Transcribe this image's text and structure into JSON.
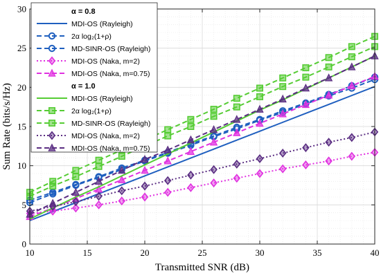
{
  "chart_data": {
    "type": "line",
    "title": "",
    "xlabel": "Transmitted SNR (dB)",
    "ylabel": "Sum Rate (bits/s/Hz)",
    "xlim": [
      10,
      40
    ],
    "ylim": [
      0,
      30
    ],
    "xticks": [
      10,
      15,
      20,
      25,
      30,
      35,
      40
    ],
    "yticks": [
      0,
      5,
      10,
      15,
      20,
      25,
      30
    ],
    "grid": true,
    "legend_position": "top-left",
    "legend_groups": [
      {
        "heading": "α = 0.8",
        "series_indices": [
          0,
          1,
          2,
          3,
          4
        ]
      },
      {
        "heading": "α = 1.0",
        "series_indices": [
          5,
          6,
          7,
          8,
          9
        ]
      }
    ],
    "x": [
      10,
      12,
      14,
      16,
      18,
      20,
      22,
      24,
      26,
      28,
      30,
      32,
      34,
      36,
      38,
      40
    ],
    "series": [
      {
        "name": "MDI-OS (Rayleigh)",
        "legend_label": "MDI-OS (Rayleigh)",
        "color": "#1f5fbf",
        "dash": "",
        "marker": "none",
        "values": [
          3.0,
          4.14,
          5.28,
          6.42,
          7.56,
          8.7,
          9.84,
          10.98,
          12.12,
          13.26,
          14.4,
          15.54,
          16.68,
          17.82,
          18.96,
          20.1
        ]
      },
      {
        "name": "2α log2(1+ρ)",
        "legend_label": "2α log₂(1+ρ)",
        "color": "#1f5fbf",
        "dash": "7,4",
        "marker": "circle",
        "values": [
          5.3,
          6.4,
          7.5,
          8.5,
          9.5,
          10.6,
          11.6,
          12.6,
          13.7,
          14.7,
          15.8,
          16.8,
          17.9,
          18.9,
          19.9,
          21.0
        ]
      },
      {
        "name": "MD-SINR-OS (Rayleigh)",
        "legend_label": "MD-SINR-OS (Rayleigh)",
        "color": "#1f5fbf",
        "dash": "7,4",
        "marker": "circle",
        "values": [
          5.6,
          6.6,
          7.6,
          8.6,
          9.7,
          10.7,
          11.7,
          12.8,
          13.8,
          14.9,
          15.9,
          17.0,
          18.0,
          19.1,
          20.2,
          21.3
        ]
      },
      {
        "name": "MDI-OS (Naka, m=2)",
        "legend_label": "MDI-OS (Naka, m=2)",
        "color": "#e030e0",
        "dash": "2,3",
        "marker": "diamond",
        "values": [
          3.9,
          4.2,
          4.6,
          5.0,
          5.5,
          6.0,
          6.6,
          7.2,
          7.8,
          8.4,
          9.0,
          9.6,
          10.1,
          10.6,
          11.2,
          11.7
        ]
      },
      {
        "name": "MDI-OS (Naka, m=0.75)",
        "legend_label": "MDI-OS (Naka, m=0.75)",
        "color": "#e030e0",
        "dash": "7,4",
        "marker": "triangle",
        "values": [
          3.5,
          4.6,
          5.8,
          7.0,
          8.2,
          9.4,
          10.6,
          11.8,
          13.0,
          14.2,
          15.4,
          16.6,
          17.8,
          19.0,
          20.2,
          21.4
        ]
      },
      {
        "name": "MDI-OS (Rayleigh)",
        "legend_label": "MDI-OS (Rayleigh)",
        "color": "#55cc33",
        "dash": "",
        "marker": "none",
        "values": [
          3.2,
          4.6,
          6.0,
          7.3,
          8.7,
          10.1,
          11.5,
          12.9,
          14.3,
          15.7,
          17.1,
          18.4,
          19.8,
          21.2,
          22.6,
          24.0
        ]
      },
      {
        "name": "2α log2(1+ρ)",
        "legend_label": "2α log₂(1+ρ)",
        "color": "#55cc33",
        "dash": "7,4",
        "marker": "square",
        "values": [
          6.6,
          8.0,
          9.4,
          10.7,
          12.0,
          13.3,
          14.6,
          15.9,
          17.2,
          18.6,
          19.9,
          21.2,
          22.5,
          23.8,
          25.2,
          26.5
        ]
      },
      {
        "name": "MD-SINR-OS (Rayleigh)",
        "legend_label": "MD-SINR-OS (Rayleigh)",
        "color": "#55cc33",
        "dash": "7,4",
        "marker": "square",
        "values": [
          6.1,
          7.4,
          8.6,
          9.9,
          11.2,
          12.5,
          13.8,
          15.0,
          16.3,
          17.5,
          18.8,
          20.1,
          21.3,
          22.6,
          23.9,
          25.2
        ]
      },
      {
        "name": "MDI-OS (Naka, m=2)",
        "legend_label": "MDI-OS (Naka, m=2)",
        "color": "#5a2d82",
        "dash": "2,3",
        "marker": "diamond",
        "values": [
          4.2,
          4.8,
          5.4,
          6.1,
          6.8,
          7.4,
          8.1,
          8.8,
          9.5,
          10.2,
          10.9,
          11.6,
          12.3,
          13.0,
          13.6,
          14.3
        ]
      },
      {
        "name": "MDI-OS (Naka, m=0.75)",
        "legend_label": "MDI-OS (Naka, m=0.75)",
        "color": "#5a2d82",
        "dash": "7,4",
        "marker": "triangle",
        "values": [
          3.8,
          5.2,
          6.6,
          8.0,
          9.4,
          10.8,
          12.0,
          13.3,
          14.6,
          15.9,
          17.2,
          18.5,
          19.9,
          21.2,
          22.6,
          24.0
        ]
      }
    ]
  }
}
